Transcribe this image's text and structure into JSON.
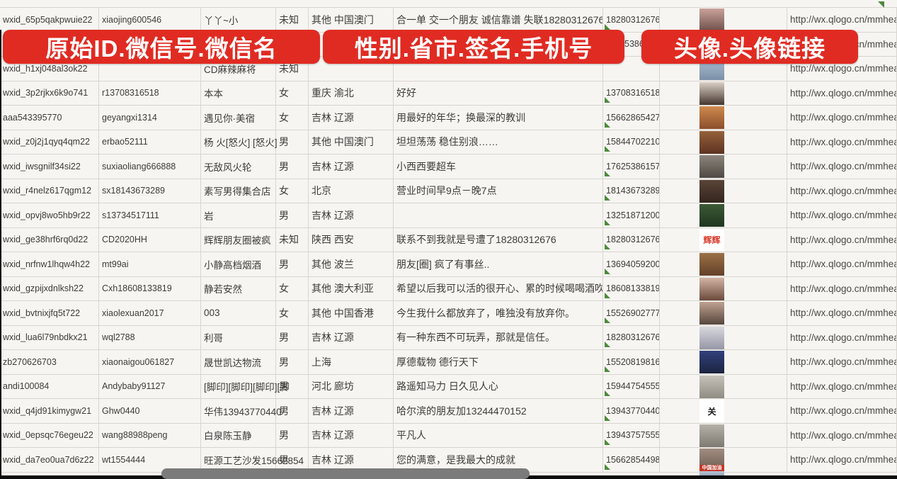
{
  "banners": {
    "left": "原始ID.微信号.微信名",
    "middle": "性别.省市.签名.手机号",
    "right": "头像.头像链接",
    "background_color": "#e02b22",
    "text_color": "#ffffff"
  },
  "columns": [
    "原始ID",
    "微信号",
    "微信名",
    "性别",
    "省市",
    "签名",
    "手机号",
    "头像",
    "头像链接"
  ],
  "colors": {
    "gridline": "#d8d5d0",
    "cell_text": "#3e3c39",
    "error_indicator_green": "#4d8a3c",
    "scrollbar_thumb": "#7b7b7b",
    "bottom_bar": "#0b0b0b"
  },
  "rows": [
    {
      "id": "wxid_65p5qakpwuie22",
      "wechat_id": "xiaojing600546",
      "name": "丫丫~小",
      "gender": "未知",
      "region": "其他 中国澳门",
      "signature": "合一单 交一个朋友 诚信靠谱 失联18280312676",
      "phone": "18280312676",
      "mark": true,
      "indent": false,
      "url": "http://wx.qlogo.cn/mmhead",
      "avatar": {
        "c1": "#caa29a",
        "c2": "#6e4f4a"
      }
    },
    {
      "id": "",
      "wechat_id": "",
      "name": "",
      "gender": "",
      "region": "",
      "signature": "",
      "phone": "5386",
      "mark": false,
      "indent": true,
      "url": "http://wx.qlogo.cn/mmhead",
      "avatar": {
        "c1": "#8fa3c0",
        "c2": "#55688a"
      }
    },
    {
      "id": "wxid_h1xj048al3ok22",
      "wechat_id": "",
      "name": "CD麻辣麻将",
      "gender": "未知",
      "region": "",
      "signature": "",
      "phone": "",
      "mark": false,
      "indent": false,
      "url": "http://wx.qlogo.cn/mmhead",
      "avatar": {
        "c1": "#aebfd2",
        "c2": "#7b90a8"
      }
    },
    {
      "id": "wxid_3p2rjkx6k9o741",
      "wechat_id": "r13708316518",
      "name": "本本",
      "gender": "女",
      "region": "重庆 渝北",
      "signature": "好好",
      "phone": "13708316518",
      "mark": true,
      "indent": false,
      "url": "http://wx.qlogo.cn/mmhead",
      "avatar": {
        "c1": "#d9cfc5",
        "c2": "#463830"
      }
    },
    {
      "id": "aaa543395770",
      "wechat_id": "geyangxi1314",
      "name": "遇见你·美宿",
      "gender": "女",
      "region": "吉林 辽源",
      "signature": "用最好的年华；换最深的教训",
      "phone": "15662865427",
      "mark": true,
      "indent": false,
      "url": "http://wx.qlogo.cn/mmhead",
      "avatar": {
        "c1": "#cf8a4e",
        "c2": "#8a4e2b"
      }
    },
    {
      "id": "wxid_z0j2j1qyq4qm22",
      "wechat_id": "erbao52111",
      "name": "杨 火[怒火] [怒火]",
      "gender": "男",
      "region": "其他 中国澳门",
      "signature": "坦坦荡荡 稳住别浪……",
      "phone": "15844702210",
      "mark": true,
      "indent": false,
      "url": "http://wx.qlogo.cn/mmhead",
      "avatar": {
        "c1": "#95603a",
        "c2": "#5d3322"
      }
    },
    {
      "id": "wxid_iwsgnilf34si22",
      "wechat_id": "suxiaoliang666888",
      "name": "无敌风火轮",
      "gender": "男",
      "region": "吉林 辽源",
      "signature": "小西西要超车",
      "phone": "17625386157",
      "mark": true,
      "indent": false,
      "url": "http://wx.qlogo.cn/mmhead",
      "avatar": {
        "c1": "#8d857c",
        "c2": "#4e4843"
      }
    },
    {
      "id": "wxid_r4nelz617qgm12",
      "wechat_id": "sx18143673289",
      "name": "素写男得集合店",
      "gender": "女",
      "region": "北京",
      "signature": "营业时间早9点－晚7点",
      "phone": "18143673289",
      "mark": true,
      "indent": false,
      "url": "http://wx.qlogo.cn/mmhead",
      "avatar": {
        "c1": "#5a4438",
        "c2": "#33251e"
      }
    },
    {
      "id": "wxid_opvj8wo5hb9r22",
      "wechat_id": "s13734517111",
      "name": "岩",
      "gender": "男",
      "region": "吉林 辽源",
      "signature": "",
      "phone": "13251871200",
      "mark": true,
      "indent": false,
      "url": "http://wx.qlogo.cn/mmhead",
      "avatar": {
        "c1": "#3c5a34",
        "c2": "#1f3520"
      }
    },
    {
      "id": "wxid_ge38hrf6rq0d22",
      "wechat_id": "CD2020HH",
      "name": "辉辉朋友圈被疯",
      "gender": "未知",
      "region": "陕西 西安",
      "signature": "联系不到我就是号遭了18280312676",
      "phone": "18280312676",
      "mark": true,
      "indent": false,
      "url": "http://wx.qlogo.cn/mmhead",
      "avatar": {
        "c1": "#ffffff",
        "c2": "#ffffff",
        "text": "辉辉",
        "text_color": "#d93a2b"
      }
    },
    {
      "id": "wxid_nrfnw1lhqw4h22",
      "wechat_id": "mt99ai",
      "name": "小静高档烟酒",
      "gender": "男",
      "region": "其他 波兰",
      "signature": "朋友[圈] 疯了有事丝..",
      "phone": "13694059200",
      "mark": true,
      "indent": false,
      "url": "http://wx.qlogo.cn/mmhead",
      "avatar": {
        "c1": "#9a7046",
        "c2": "#64402a"
      }
    },
    {
      "id": "wxid_gzpijxdnlksh22",
      "wechat_id": "Cxh18608133819",
      "name": "静若安然",
      "gender": "女",
      "region": "其他 澳大利亚",
      "signature": "希望以后我可以活的很开心、累的时候喝喝酒吹吹[",
      "phone": "18608133819",
      "mark": true,
      "indent": false,
      "url": "http://wx.qlogo.cn/mmhead",
      "avatar": {
        "c1": "#d2b4a4",
        "c2": "#6b4a3c"
      }
    },
    {
      "id": "wxid_bvtnixjfq5t722",
      "wechat_id": "xiaolexuan2017",
      "name": "003",
      "gender": "女",
      "region": "其他 中国香港",
      "signature": "今生我什么都放弃了，唯独没有放弃你。",
      "phone": "15526902777",
      "mark": true,
      "indent": false,
      "url": "http://wx.qlogo.cn/mmhead",
      "avatar": {
        "c1": "#c0a191",
        "c2": "#55463c"
      }
    },
    {
      "id": "wxid_lua6l79nbdkx21",
      "wechat_id": "wql2788",
      "name": "利哥",
      "gender": "男",
      "region": "吉林 辽源",
      "signature": "有一种东西不可玩弄，那就是信任。",
      "phone": "18280312676",
      "mark": true,
      "indent": false,
      "url": "http://wx.qlogo.cn/mmhead",
      "avatar": {
        "c1": "#d8d8de",
        "c2": "#9597a5"
      }
    },
    {
      "id": "zb270626703",
      "wechat_id": "xiaonaigou061827",
      "name": "晟世凯达物流",
      "gender": "男",
      "region": "上海",
      "signature": "厚德载物 德行天下",
      "phone": "15520819816",
      "mark": true,
      "indent": false,
      "url": "http://wx.qlogo.cn/mmhead",
      "avatar": {
        "c1": "#32407c",
        "c2": "#1c2440"
      }
    },
    {
      "id": "andi100084",
      "wechat_id": "Andybaby91127",
      "name": "[脚印][脚印][脚印][脚",
      "gender": "男",
      "region": "河北 廊坊",
      "signature": "路遥知马力 日久见人心",
      "phone": "15944754555",
      "mark": true,
      "indent": false,
      "url": "http://wx.qlogo.cn/mmhead",
      "avatar": {
        "c1": "#c6c2ba",
        "c2": "#908c84"
      }
    },
    {
      "id": "wxid_q4jd91kimygw21",
      "wechat_id": "Ghw0440",
      "name": "华伟13943770440",
      "gender": "男",
      "region": "吉林 辽源",
      "signature": "哈尔滨的朋友加13244470152",
      "phone": "13943770440",
      "mark": true,
      "indent": false,
      "url": "http://wx.qlogo.cn/mmhead",
      "avatar": {
        "c1": "#ffffff",
        "c2": "#ffffff",
        "text": "关",
        "text_color": "#1a1a1a"
      }
    },
    {
      "id": "wxid_0epsqc76egeu22",
      "wechat_id": "wang88988peng",
      "name": "白泉陈玉静",
      "gender": "男",
      "region": "吉林 辽源",
      "signature": "平凡人",
      "phone": "13943757555",
      "mark": true,
      "indent": false,
      "url": "http://wx.qlogo.cn/mmhead",
      "avatar": {
        "c1": "#b5b1a9",
        "c2": "#7e7a72"
      }
    },
    {
      "id": "wxid_da7eo0ua7d6z22",
      "wechat_id": "wt1554444",
      "name": "旺源工艺沙发15662854",
      "gender": "男",
      "region": "吉林 辽源",
      "signature": "您的满意，是我最大的成就",
      "phone": "15662854498",
      "mark": true,
      "indent": false,
      "url": "http://wx.qlogo.cn/mmhead",
      "avatar": {
        "c1": "#a08d80",
        "c2": "#6e5c50",
        "band": "中国加油"
      }
    }
  ]
}
